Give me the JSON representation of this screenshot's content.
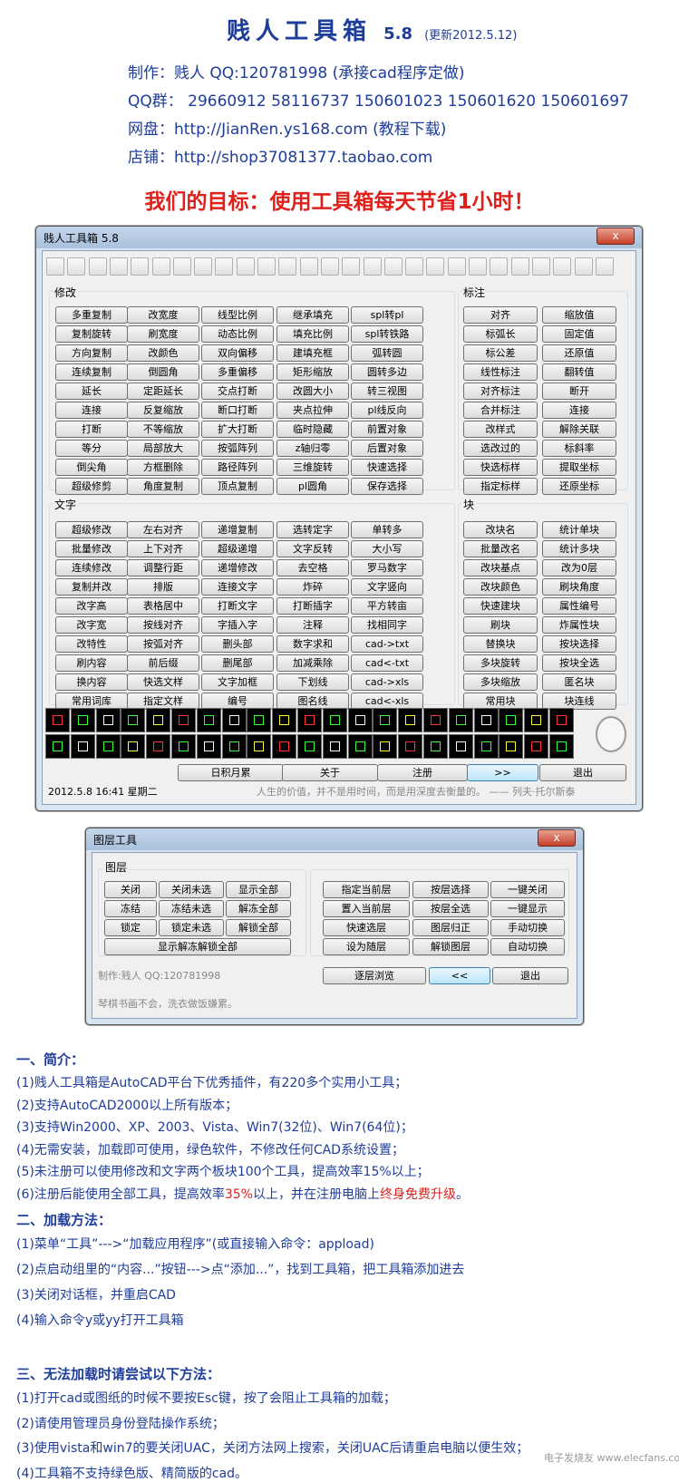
{
  "header": {
    "title": "贱人工具箱",
    "version": "5.8",
    "update": "(更新2012.5.12)",
    "info": [
      "制作：贱人 QQ:120781998 (承接cad程序定做)",
      "QQ群： 29660912  58116737  150601023  150601620  150601697",
      "网盘：http://JianRen.ys168.com (教程下载)",
      "店铺：http://shop37081377.taobao.com"
    ],
    "slogan": "我们的目标：使用工具箱每天节省1小时！"
  },
  "main_window": {
    "title": "贱人工具箱 5.8",
    "close": "x",
    "groups": [
      {
        "label": "修改",
        "buttons": [
          [
            "多重复制",
            "改宽度",
            "线型比例",
            "继承填充",
            "spl转pl"
          ],
          [
            "复制旋转",
            "刷宽度",
            "动态比例",
            "填充比例",
            "spl转铁路"
          ],
          [
            "方向复制",
            "改颜色",
            "双向偏移",
            "建填充框",
            "弧转圆"
          ],
          [
            "连续复制",
            "倒圆角",
            "多重偏移",
            "矩形缩放",
            "圆转多边"
          ],
          [
            "延长",
            "定距延长",
            "交点打断",
            "改圆大小",
            "转三视图"
          ],
          [
            "连接",
            "反复缩放",
            "断口打断",
            "夹点拉伸",
            "pl线反向"
          ],
          [
            "打断",
            "不等缩放",
            "扩大打断",
            "临时隐藏",
            "前置对象"
          ],
          [
            "等分",
            "局部放大",
            "按弧阵列",
            "z轴归零",
            "后置对象"
          ],
          [
            "倒尖角",
            "方框删除",
            "路径阵列",
            "三维旋转",
            "快速选择"
          ],
          [
            "超级修剪",
            "角度复制",
            "顶点复制",
            "pl圆角",
            "保存选择"
          ]
        ]
      },
      {
        "label": "标注",
        "buttons": [
          [
            "对齐",
            "缩放值"
          ],
          [
            "标弧长",
            "固定值"
          ],
          [
            "标公差",
            "还原值"
          ],
          [
            "线性标注",
            "翻转值"
          ],
          [
            "对齐标注",
            "断开"
          ],
          [
            "合并标注",
            "连接"
          ],
          [
            "改样式",
            "解除关联"
          ],
          [
            "选改过的",
            "标斜率"
          ],
          [
            "快选标样",
            "提取坐标"
          ],
          [
            "指定标样",
            "还原坐标"
          ]
        ]
      },
      {
        "label": "文字",
        "buttons": [
          [
            "超级修改",
            "左右对齐",
            "递增复制",
            "选转定字",
            "单转多"
          ],
          [
            "批量修改",
            "上下对齐",
            "超级递增",
            "文字反转",
            "大小写"
          ],
          [
            "连续修改",
            "调整行距",
            "递增修改",
            "去空格",
            "罗马数字"
          ],
          [
            "复制并改",
            "排版",
            "连接文字",
            "炸碎",
            "文字竖向"
          ],
          [
            "改字高",
            "表格居中",
            "打断文字",
            "打断插字",
            "平方转亩"
          ],
          [
            "改字宽",
            "按线对齐",
            "字插入字",
            "注释",
            "找相同字"
          ],
          [
            "改特性",
            "按弧对齐",
            "删头部",
            "数字求和",
            "cad->txt"
          ],
          [
            "刷内容",
            "前后缀",
            "删尾部",
            "加减乘除",
            "cad<-txt"
          ],
          [
            "换内容",
            "快选文样",
            "文字加框",
            "下划线",
            "cad->xls"
          ],
          [
            "常用词库",
            "指定文样",
            "编号",
            "图名线",
            "cad<-xls"
          ]
        ]
      },
      {
        "label": "块",
        "buttons": [
          [
            "改块名",
            "统计单块"
          ],
          [
            "批量改名",
            "统计多块"
          ],
          [
            "改块基点",
            "改为0层"
          ],
          [
            "改块颜色",
            "刷块角度"
          ],
          [
            "快速建块",
            "属性编号"
          ],
          [
            "刷块",
            "炸属性块"
          ],
          [
            "替换块",
            "按块选择"
          ],
          [
            "多块旋转",
            "按块全选"
          ],
          [
            "多块缩放",
            "匿名块"
          ],
          [
            "常用块",
            "块连线"
          ]
        ]
      }
    ],
    "bottom_buttons": [
      "日积月累",
      "关于",
      "注册",
      ">>",
      "退出"
    ],
    "status": {
      "datetime": "2012.5.8   16:41   星期二",
      "quote": "人生的价值，并不是用时间，而是用深度去衡量的。 —— 列夫·托尔斯泰"
    }
  },
  "layer_window": {
    "title": "图层工具",
    "close": "x",
    "group_label": "图层",
    "left_buttons": [
      [
        "关闭",
        "关闭未选",
        "显示全部"
      ],
      [
        "冻结",
        "冻结未选",
        "解冻全部"
      ],
      [
        "锁定",
        "锁定未选",
        "解锁全部"
      ]
    ],
    "wide_button": "显示解冻解锁全部",
    "right_buttons": [
      [
        "指定当前层",
        "按层选择",
        "一键关闭"
      ],
      [
        "置入当前层",
        "按层全选",
        "一键显示"
      ],
      [
        "快速选层",
        "图层归正",
        "手动切换"
      ],
      [
        "设为随层",
        "解锁图层",
        "自动切换"
      ]
    ],
    "credit": "制作:贱人   QQ:120781998",
    "buttons": [
      "逐层浏览",
      "<<",
      "退出"
    ],
    "quote": "琴棋书画不会，洗衣做饭嫌累。"
  },
  "sections": [
    {
      "heading": "一、简介：",
      "lines": [
        "(1)贱人工具箱是AutoCAD平台下优秀插件，有220多个实用小工具；",
        "(2)支持AutoCAD2000以上所有版本；",
        "(3)支持Win2000、XP、2003、Vista、Win7(32位)、Win7(64位)；",
        "(4)无需安装，加载即可使用，绿色软件，不修改任何CAD系统设置；",
        "(5)未注册可以使用修改和文字两个板块100个工具，提高效率15%以上；",
        [
          "(6)注册后能使用全部工具，提高效率",
          "35%",
          "以上，并在注册电脑上",
          "终身免费升级",
          "。"
        ]
      ]
    },
    {
      "heading": "二、加载方法：",
      "lines": [
        "(1)菜单“工具”--->“加载应用程序”(或直接输入命令：appload)",
        "(2)点启动组里的“内容...”按钮--->点“添加...”，找到工具箱，把工具箱添加进去",
        "(3)关闭对话框，并重启CAD",
        "(4)输入命令y或yy打开工具箱"
      ]
    },
    {
      "heading": "三、无法加载时请尝试以下方法：",
      "lines": [
        "(1)打开cad或图纸的时候不要按Esc键，按了会阻止工具箱的加载；",
        "(2)请使用管理员身份登陆操作系统；",
        "(3)使用vista和win7的要关闭UAC，关闭方法网上搜索，关闭UAC后请重启电脑以便生效；",
        "(4)工具箱不支持绿色版、精简版的cad。"
      ]
    }
  ],
  "watermark": "电子发烧友 www.elecfans.com"
}
